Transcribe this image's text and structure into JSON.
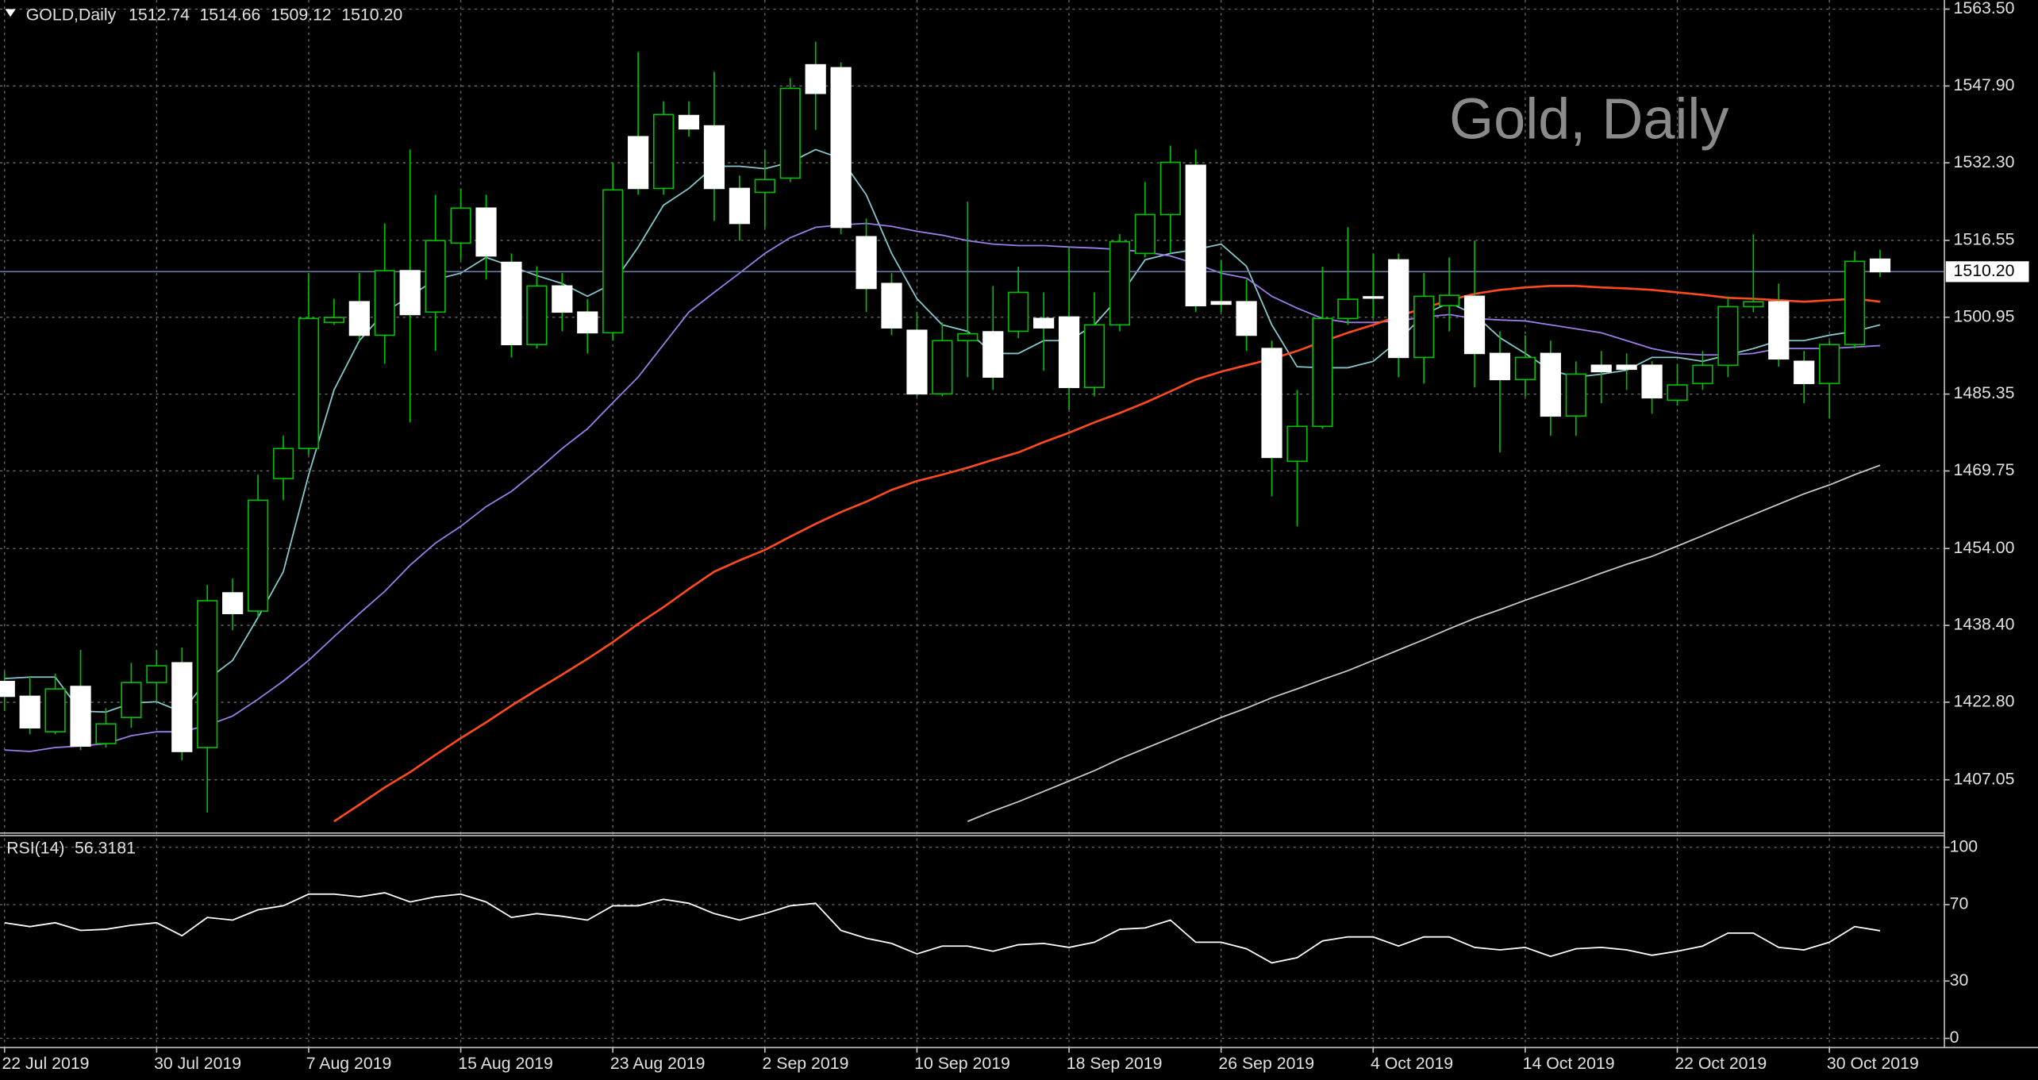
{
  "header": {
    "symbol": "GOLD,Daily",
    "ohlc": [
      "1512.74",
      "1514.66",
      "1509.12",
      "1510.20"
    ]
  },
  "chart_data": [
    {
      "type": "candlestick",
      "watermark": "Gold, Daily",
      "categories": [
        "22 Jul 2019",
        null,
        null,
        null,
        null,
        null,
        "30 Jul 2019",
        null,
        null,
        null,
        null,
        null,
        "7 Aug 2019",
        null,
        null,
        null,
        null,
        null,
        "15 Aug 2019",
        null,
        null,
        null,
        null,
        null,
        "23 Aug 2019",
        null,
        null,
        null,
        null,
        null,
        "2 Sep 2019",
        null,
        null,
        null,
        null,
        null,
        "10 Sep 2019",
        null,
        null,
        null,
        null,
        null,
        "18 Sep 2019",
        null,
        null,
        null,
        null,
        null,
        "26 Sep 2019",
        null,
        null,
        null,
        null,
        null,
        "4 Oct 2019",
        null,
        null,
        null,
        null,
        null,
        "14 Oct 2019",
        null,
        null,
        null,
        null,
        null,
        "22 Oct 2019",
        null,
        null,
        null,
        null,
        null,
        "30 Oct 2019",
        null,
        null
      ],
      "open": [
        1427.0,
        1424.0,
        1416.8,
        1426.0,
        1414.4,
        1419.7,
        1426.8,
        1430.8,
        1413.6,
        1445.0,
        1441.3,
        1468.2,
        1474.3,
        1499.9,
        1504.1,
        1497.3,
        1510.4,
        1502.0,
        1516.0,
        1523.1,
        1512.1,
        1495.4,
        1507.3,
        1502.0,
        1497.8,
        1537.6,
        1527.1,
        1541.9,
        1539.8,
        1527.1,
        1526.3,
        1529.2,
        1552.2,
        1551.6,
        1517.3,
        1507.8,
        1498.3,
        1485.4,
        1496.2,
        1498.0,
        1498.1,
        1500.7,
        1501.0,
        1486.7,
        1499.4,
        1513.9,
        1521.8,
        1531.8,
        1504.1,
        1504.1,
        1494.6,
        1471.7,
        1478.8,
        1500.7,
        1505.1,
        1512.6,
        1492.8,
        1503.3,
        1505.2,
        1493.6,
        1488.3,
        1493.6,
        1480.9,
        1491.2,
        1491.2,
        1491.2,
        1484.1,
        1487.5,
        1491.2,
        1503.1,
        1504.1,
        1492.0,
        1487.5,
        1495.4,
        1512.74
      ],
      "high": [
        1429.0,
        1428.1,
        1428.6,
        1433.4,
        1421.6,
        1430.8,
        1433.4,
        1433.9,
        1446.6,
        1447.9,
        1469.0,
        1476.9,
        1509.9,
        1504.7,
        1509.9,
        1520.0,
        1535.0,
        1525.8,
        1527.1,
        1525.8,
        1513.9,
        1511.3,
        1509.9,
        1504.6,
        1532.4,
        1554.8,
        1544.8,
        1544.8,
        1550.8,
        1529.7,
        1535.0,
        1549.5,
        1556.9,
        1552.7,
        1521.0,
        1509.9,
        1502.0,
        1499.9,
        1524.4,
        1507.3,
        1511.2,
        1506.0,
        1515.2,
        1506.0,
        1517.8,
        1528.4,
        1535.8,
        1535.0,
        1512.6,
        1508.6,
        1496.2,
        1486.2,
        1511.2,
        1519.2,
        1513.9,
        1513.9,
        1509.9,
        1513.1,
        1516.5,
        1498.1,
        1497.3,
        1496.2,
        1492.0,
        1494.1,
        1493.6,
        1492.0,
        1491.5,
        1494.1,
        1505.2,
        1517.8,
        1507.8,
        1494.1,
        1496.2,
        1514.4,
        1514.66
      ],
      "low": [
        1421.0,
        1416.3,
        1416.3,
        1413.1,
        1413.6,
        1417.6,
        1422.9,
        1411.0,
        1400.4,
        1437.4,
        1440.0,
        1463.8,
        1473.0,
        1499.4,
        1496.2,
        1491.5,
        1479.6,
        1494.1,
        1512.6,
        1508.6,
        1492.8,
        1494.6,
        1498.1,
        1493.6,
        1496.2,
        1525.8,
        1525.8,
        1537.6,
        1520.5,
        1516.5,
        1519.2,
        1528.4,
        1539.0,
        1517.8,
        1502.0,
        1497.3,
        1484.9,
        1484.9,
        1488.8,
        1486.2,
        1496.7,
        1490.1,
        1482.2,
        1484.9,
        1498.1,
        1513.1,
        1513.9,
        1502.0,
        1502.0,
        1494.1,
        1464.6,
        1458.5,
        1478.3,
        1499.4,
        1500.7,
        1488.8,
        1487.5,
        1498.1,
        1486.7,
        1473.5,
        1484.9,
        1476.9,
        1476.9,
        1483.5,
        1486.2,
        1481.4,
        1483.0,
        1486.2,
        1488.8,
        1502.0,
        1490.9,
        1483.5,
        1480.4,
        1494.6,
        1509.12
      ],
      "close": [
        1424.0,
        1417.6,
        1425.5,
        1413.9,
        1418.4,
        1426.8,
        1430.2,
        1412.8,
        1443.4,
        1440.8,
        1463.8,
        1474.3,
        1500.7,
        1500.9,
        1497.3,
        1510.4,
        1501.5,
        1516.5,
        1523.1,
        1513.4,
        1495.4,
        1507.3,
        1502.0,
        1497.8,
        1526.8,
        1527.1,
        1542.1,
        1539.2,
        1527.1,
        1520.0,
        1528.9,
        1547.4,
        1546.4,
        1519.2,
        1506.8,
        1498.8,
        1485.4,
        1496.2,
        1497.6,
        1488.8,
        1506.0,
        1498.8,
        1486.7,
        1499.4,
        1516.3,
        1521.8,
        1532.4,
        1503.3,
        1503.6,
        1497.3,
        1472.5,
        1478.8,
        1500.7,
        1504.6,
        1504.9,
        1492.8,
        1505.2,
        1505.4,
        1493.6,
        1488.3,
        1492.8,
        1480.9,
        1489.4,
        1489.9,
        1490.4,
        1484.6,
        1487.2,
        1491.2,
        1503.1,
        1504.1,
        1492.5,
        1487.5,
        1495.4,
        1512.3,
        1510.2
      ],
      "bull_color": "#000000",
      "bear_color": "#ffffff",
      "wick_color": "#00c000",
      "overlays": [
        {
          "color": "#86c6cc",
          "values": [
            1427.6,
            1427.9,
            1427.9,
            1421.0,
            1420.8,
            1422.6,
            1422.9,
            1420.8,
            1427.4,
            1431.3,
            1440.0,
            1449.3,
            1469.0,
            1486.2,
            1496.2,
            1502.0,
            1505.2,
            1508.6,
            1509.9,
            1513.1,
            1511.3,
            1509.4,
            1507.8,
            1505.2,
            1507.8,
            1515.2,
            1523.7,
            1527.1,
            1531.6,
            1531.6,
            1531.1,
            1532.4,
            1535.0,
            1533.2,
            1525.8,
            1513.9,
            1504.7,
            1499.4,
            1498.1,
            1493.6,
            1493.6,
            1496.2,
            1496.2,
            1499.4,
            1505.2,
            1512.6,
            1513.9,
            1514.7,
            1515.8,
            1511.3,
            1499.4,
            1490.9,
            1490.7,
            1490.7,
            1492.0,
            1496.2,
            1501.5,
            1503.9,
            1501.5,
            1496.8,
            1493.6,
            1490.2,
            1488.8,
            1489.4,
            1490.2,
            1492.8,
            1492.8,
            1492.0,
            1493.3,
            1494.6,
            1496.2,
            1496.2,
            1497.3,
            1498.1,
            1499.4
          ]
        },
        {
          "color": "#9b7de8",
          "values": [
            1413.1,
            1412.8,
            1413.6,
            1413.9,
            1414.4,
            1416.0,
            1416.8,
            1416.8,
            1418.1,
            1420.0,
            1423.4,
            1427.1,
            1431.3,
            1436.1,
            1440.8,
            1445.3,
            1450.6,
            1455.1,
            1458.5,
            1462.5,
            1465.6,
            1469.8,
            1474.3,
            1478.3,
            1483.6,
            1488.8,
            1495.4,
            1502.0,
            1506.0,
            1509.9,
            1513.9,
            1517.1,
            1519.2,
            1519.7,
            1520.0,
            1519.4,
            1518.4,
            1517.6,
            1516.5,
            1515.8,
            1515.5,
            1515.5,
            1515.2,
            1515.0,
            1514.7,
            1514.2,
            1513.4,
            1511.8,
            1509.9,
            1508.9,
            1505.2,
            1502.8,
            1500.7,
            1499.9,
            1499.9,
            1500.2,
            1501.0,
            1501.5,
            1500.7,
            1500.4,
            1500.2,
            1499.4,
            1498.6,
            1497.8,
            1496.2,
            1494.6,
            1493.6,
            1493.3,
            1493.3,
            1493.6,
            1494.6,
            1494.6,
            1494.6,
            1494.9,
            1495.2
          ]
        },
        {
          "color": "#ff4a1c",
          "values": [
            null,
            null,
            null,
            null,
            null,
            null,
            null,
            null,
            null,
            null,
            null,
            null,
            null,
            1398.6,
            1402.0,
            1405.5,
            1408.6,
            1412.1,
            1415.5,
            1418.7,
            1422.1,
            1425.3,
            1428.4,
            1431.6,
            1435.0,
            1438.7,
            1442.1,
            1445.8,
            1449.3,
            1451.6,
            1453.7,
            1456.4,
            1459.0,
            1461.4,
            1463.5,
            1465.9,
            1467.7,
            1469.0,
            1470.4,
            1472.0,
            1473.5,
            1475.6,
            1477.5,
            1479.6,
            1481.5,
            1483.6,
            1485.9,
            1488.3,
            1489.9,
            1491.2,
            1492.5,
            1494.1,
            1496.0,
            1497.8,
            1499.4,
            1501.2,
            1502.8,
            1504.4,
            1505.7,
            1506.5,
            1507.0,
            1507.3,
            1507.3,
            1507.0,
            1506.8,
            1506.5,
            1506.0,
            1505.5,
            1504.9,
            1504.7,
            1504.4,
            1504.1,
            1504.4,
            1504.7,
            1504.1
          ]
        },
        {
          "color": "#c8c8c8",
          "values": [
            null,
            null,
            null,
            null,
            null,
            null,
            null,
            null,
            null,
            null,
            null,
            null,
            null,
            null,
            null,
            null,
            null,
            null,
            null,
            null,
            null,
            null,
            null,
            null,
            null,
            null,
            null,
            null,
            null,
            null,
            null,
            null,
            null,
            null,
            null,
            null,
            null,
            null,
            1398.6,
            1400.7,
            1402.6,
            1404.7,
            1406.8,
            1408.9,
            1411.3,
            1413.4,
            1415.5,
            1417.6,
            1419.7,
            1421.6,
            1423.7,
            1425.5,
            1427.4,
            1429.2,
            1431.3,
            1433.4,
            1435.5,
            1437.7,
            1439.8,
            1441.6,
            1443.5,
            1445.3,
            1447.1,
            1449.0,
            1450.8,
            1452.4,
            1454.5,
            1456.6,
            1458.8,
            1460.9,
            1463.0,
            1465.1,
            1466.9,
            1469.0,
            1470.9
          ]
        }
      ],
      "ylim": [
        1396.5,
        1565.35
      ],
      "yticks": [
        {
          "value": 1563.5,
          "label": "1563.50"
        },
        {
          "value": 1547.9,
          "label": "1547.90"
        },
        {
          "value": 1532.3,
          "label": "1532.30"
        },
        1516.55,
        1500.95,
        1485.35,
        1469.75,
        {
          "value": 1454.0,
          "label": "1454.00"
        },
        {
          "value": 1438.4,
          "label": "1438.40"
        },
        {
          "value": 1422.8,
          "label": "1422.80"
        },
        1407.05
      ],
      "grid": true,
      "bid": {
        "value": 1510.2,
        "label": "1510.20"
      },
      "bid_color": "#6b7fa6"
    },
    {
      "type": "line",
      "title": "RSI(14)",
      "values": [
        60.5,
        58.5,
        60.5,
        56.5,
        57.1,
        59.2,
        60.5,
        53.7,
        63.3,
        61.9,
        67.3,
        69.4,
        75.5,
        75.5,
        74.1,
        76.2,
        71.4,
        74.1,
        75.5,
        71.4,
        63.3,
        65.3,
        63.9,
        61.9,
        69.4,
        69.4,
        72.8,
        70.7,
        65.3,
        61.9,
        65.3,
        69.4,
        70.7,
        56.5,
        52.4,
        49.7,
        44.2,
        48.3,
        48.3,
        45.6,
        49.0,
        49.7,
        47.6,
        50.3,
        57.1,
        57.8,
        61.9,
        50.3,
        50.3,
        46.9,
        39.5,
        42.2,
        51.0,
        53.1,
        53.1,
        48.3,
        53.1,
        53.1,
        47.6,
        46.3,
        47.6,
        42.9,
        46.9,
        47.6,
        46.3,
        43.5,
        45.6,
        48.3,
        55.1,
        55.1,
        47.6,
        46.3,
        50.3,
        58.5,
        56.3181
      ],
      "color": "#ffffff",
      "ylim": [
        -4.8,
        106.1
      ],
      "yticks": [
        100,
        70,
        30,
        0
      ],
      "grid": true
    }
  ]
}
